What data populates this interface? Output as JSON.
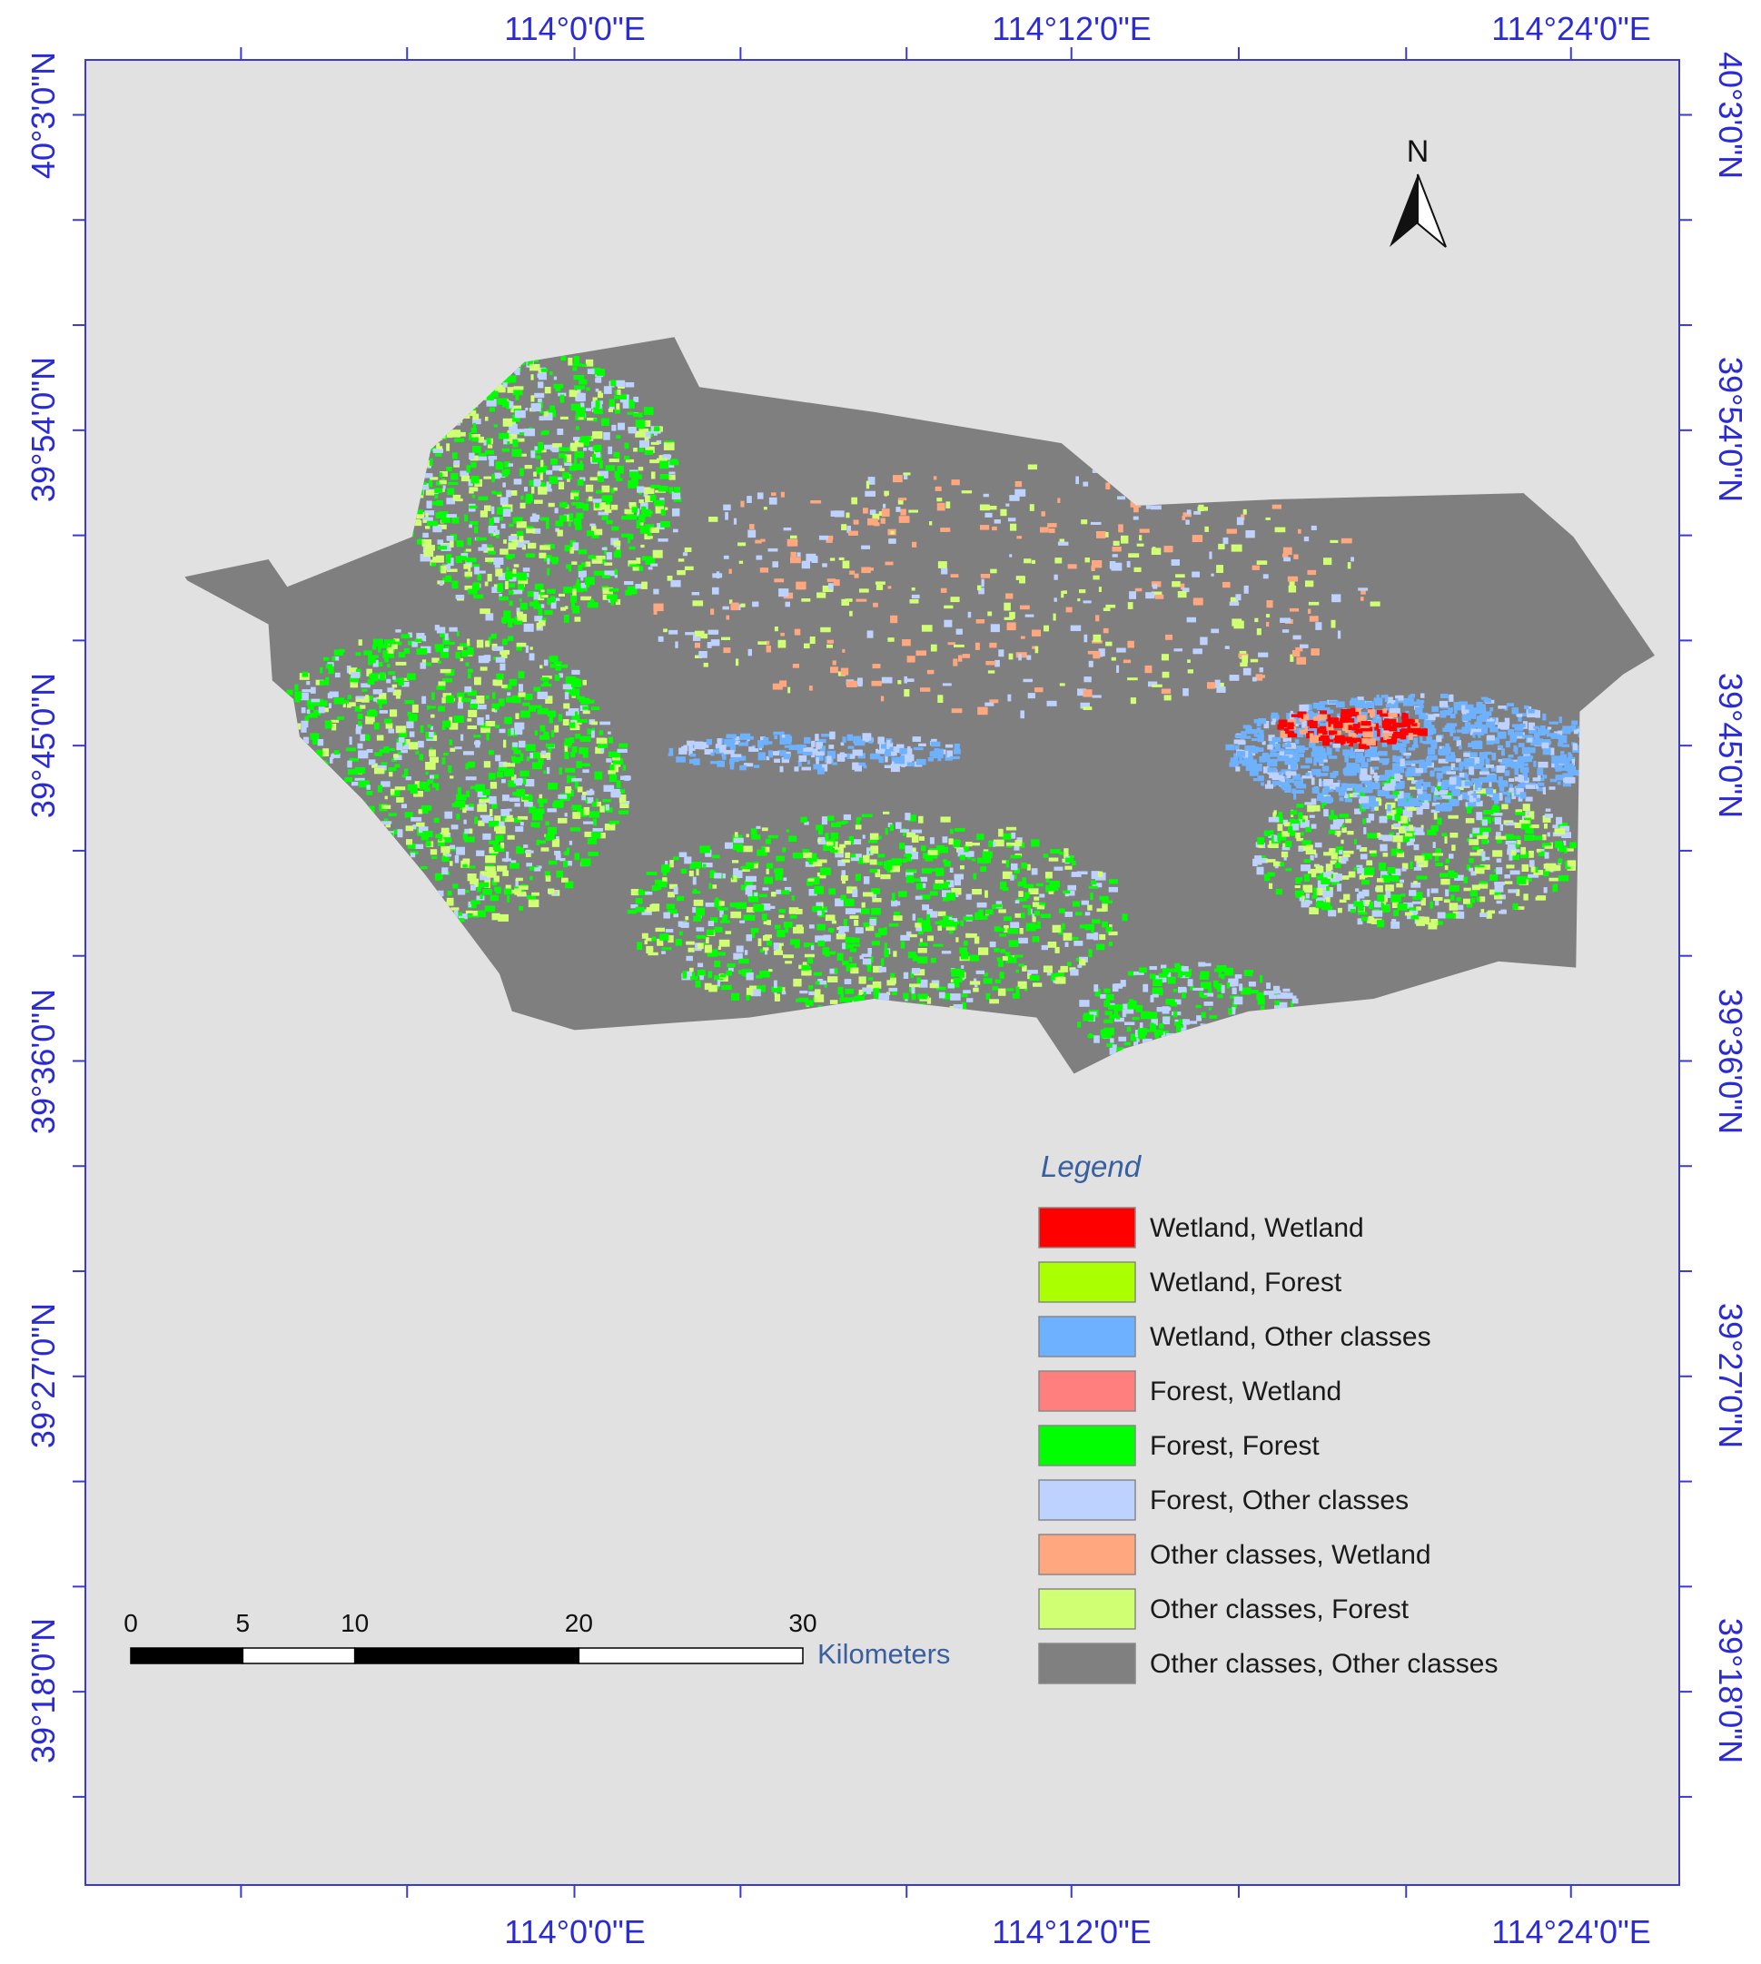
{
  "map": {
    "north_label": "N",
    "top_longitude_labels": [
      "114°0'0\"E",
      "114°12'0\"E",
      "114°24'0\"E"
    ],
    "bottom_longitude_labels": [
      "114°0'0\"E",
      "114°12'0\"E",
      "114°24'0\"E"
    ],
    "left_latitude_labels": [
      "40°3'0\"N",
      "39°54'0\"N",
      "39°45'0\"N",
      "39°36'0\"N",
      "39°27'0\"N",
      "39°18'0\"N"
    ],
    "right_latitude_labels": [
      "40°3'0\"N",
      "39°54'0\"N",
      "39°45'0\"N",
      "39°36'0\"N",
      "39°27'0\"N",
      "39°18'0\"N"
    ],
    "legend": {
      "title": "Legend",
      "items": [
        {
          "label": "Wetland, Wetland",
          "color": "#ff0000"
        },
        {
          "label": "Wetland, Forest",
          "color": "#aaff00"
        },
        {
          "label": "Wetland, Other classes",
          "color": "#6eb1ff"
        },
        {
          "label": "Forest, Wetland",
          "color": "#ff7f7f"
        },
        {
          "label": "Forest, Forest",
          "color": "#00ff00"
        },
        {
          "label": "Forest, Other classes",
          "color": "#bed2ff"
        },
        {
          "label": "Other classes, Wetland",
          "color": "#ffa77f"
        },
        {
          "label": "Other classes, Forest",
          "color": "#d1ff73"
        },
        {
          "label": "Other classes, Other classes",
          "color": "#808080"
        }
      ]
    },
    "scale_bar": {
      "ticks": [
        0,
        5,
        10,
        20,
        30
      ],
      "unit": "Kilometers"
    }
  }
}
